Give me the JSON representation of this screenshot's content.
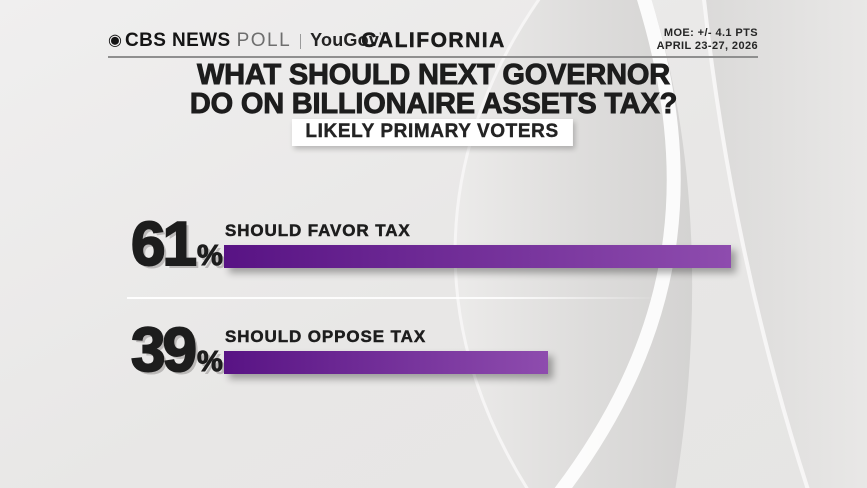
{
  "header": {
    "brand": {
      "cbs_eye_icon": "◉",
      "cbs_news": "CBS NEWS",
      "poll": "POLL",
      "partner": "YouGov",
      "partner_mark": "’"
    },
    "region": "CALIFORNIA",
    "moe": "MOE: +/- 4.1 PTS",
    "date_range": "APRIL 23-27, 2026"
  },
  "headline": {
    "line1": "WHAT SHOULD NEXT GOVERNOR",
    "line2": "DO ON BILLIONAIRE ASSETS TAX?"
  },
  "audience_badge": "LIKELY PRIMARY VOTERS",
  "chart_data": {
    "type": "bar",
    "orientation": "horizontal",
    "title": "WHAT SHOULD NEXT GOVERNOR DO ON BILLIONAIRE ASSETS TAX?",
    "subtitle": "LIKELY PRIMARY VOTERS",
    "categories": [
      "SHOULD FAVOR TAX",
      "SHOULD OPPOSE TAX"
    ],
    "values": [
      61,
      39
    ],
    "unit": "%",
    "xlim": [
      0,
      100
    ],
    "grid": false,
    "legend": false,
    "bar_gradient": [
      "#581384",
      "#8e4cae"
    ],
    "value_label_color": "#1d1d1d"
  },
  "colors": {
    "background": "#e9e8e7",
    "text_primary": "#1d1d1d",
    "text_muted": "#6e6e6e",
    "divider": "#8f8f8f",
    "badge_background": "#ffffff",
    "bar_start": "#581384",
    "bar_end": "#8e4cae"
  }
}
